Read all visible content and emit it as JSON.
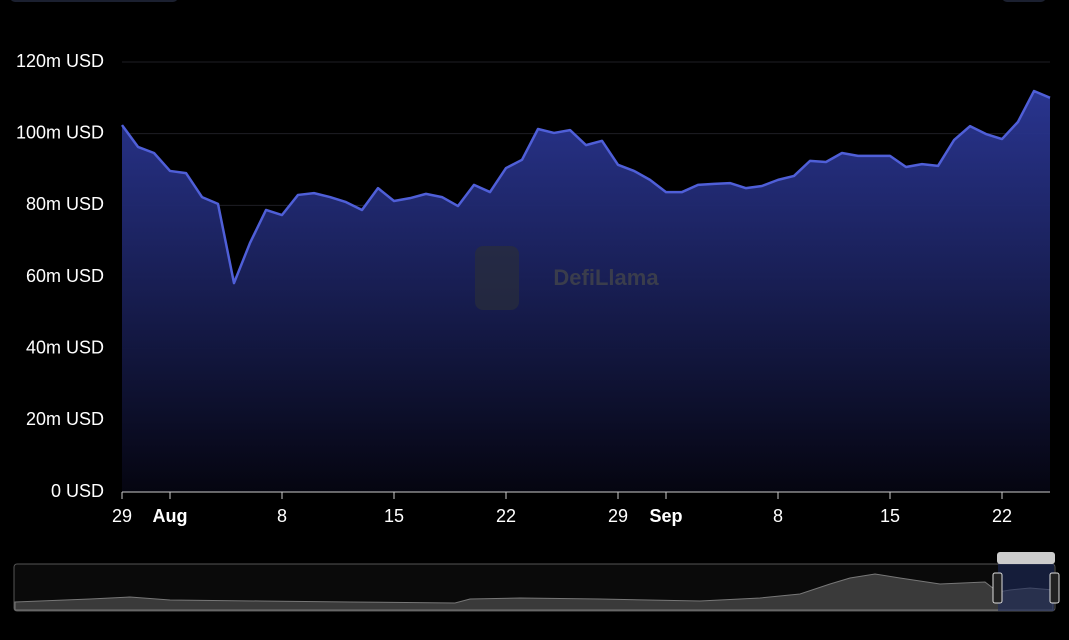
{
  "chart_data": {
    "type": "area",
    "watermark": "DefiLlama",
    "categories": [
      "29",
      null,
      null,
      "Aug",
      null,
      null,
      null,
      null,
      null,
      null,
      "8",
      null,
      null,
      null,
      null,
      null,
      null,
      "15",
      null,
      null,
      null,
      null,
      null,
      null,
      "22",
      null,
      null,
      null,
      null,
      null,
      null,
      "29",
      null,
      null,
      "Sep",
      null,
      null,
      null,
      null,
      null,
      null,
      "8",
      null,
      null,
      null,
      null,
      null,
      null,
      "15",
      null,
      null,
      null,
      null,
      null,
      null,
      "22",
      null,
      null,
      null
    ],
    "bold_categories": [
      "Aug",
      "Sep"
    ],
    "series": [
      {
        "color": "#4f5fd8",
        "values": [
          102400000,
          96300000,
          94600000,
          89600000,
          89000000,
          82300000,
          80400000,
          58300000,
          69500000,
          78700000,
          77300000,
          82900000,
          83400000,
          82300000,
          80900000,
          78700000,
          84800000,
          81200000,
          82000000,
          83200000,
          82300000,
          79800000,
          85700000,
          83700000,
          90400000,
          92700000,
          101300000,
          100200000,
          101000000,
          96800000,
          98000000,
          91300000,
          89600000,
          87100000,
          83700000,
          83700000,
          85700000,
          86000000,
          86200000,
          84800000,
          85400000,
          87100000,
          88200000,
          92400000,
          92100000,
          94600000,
          93800000,
          93800000,
          93800000,
          90700000,
          91500000,
          91000000,
          98200000,
          102100000,
          99900000,
          98500000,
          103300000,
          111900000,
          110000000
        ]
      }
    ],
    "ylim": [
      0,
      120000000
    ],
    "yticks": [
      {
        "value": 0,
        "label": "0 USD"
      },
      {
        "value": 20000000,
        "label": "20m USD"
      },
      {
        "value": 40000000,
        "label": "40m USD"
      },
      {
        "value": 60000000,
        "label": "60m USD"
      },
      {
        "value": 80000000,
        "label": "80m USD"
      },
      {
        "value": 100000000,
        "label": "100m USD"
      },
      {
        "value": 120000000,
        "label": "120m USD"
      }
    ],
    "grid": true
  }
}
